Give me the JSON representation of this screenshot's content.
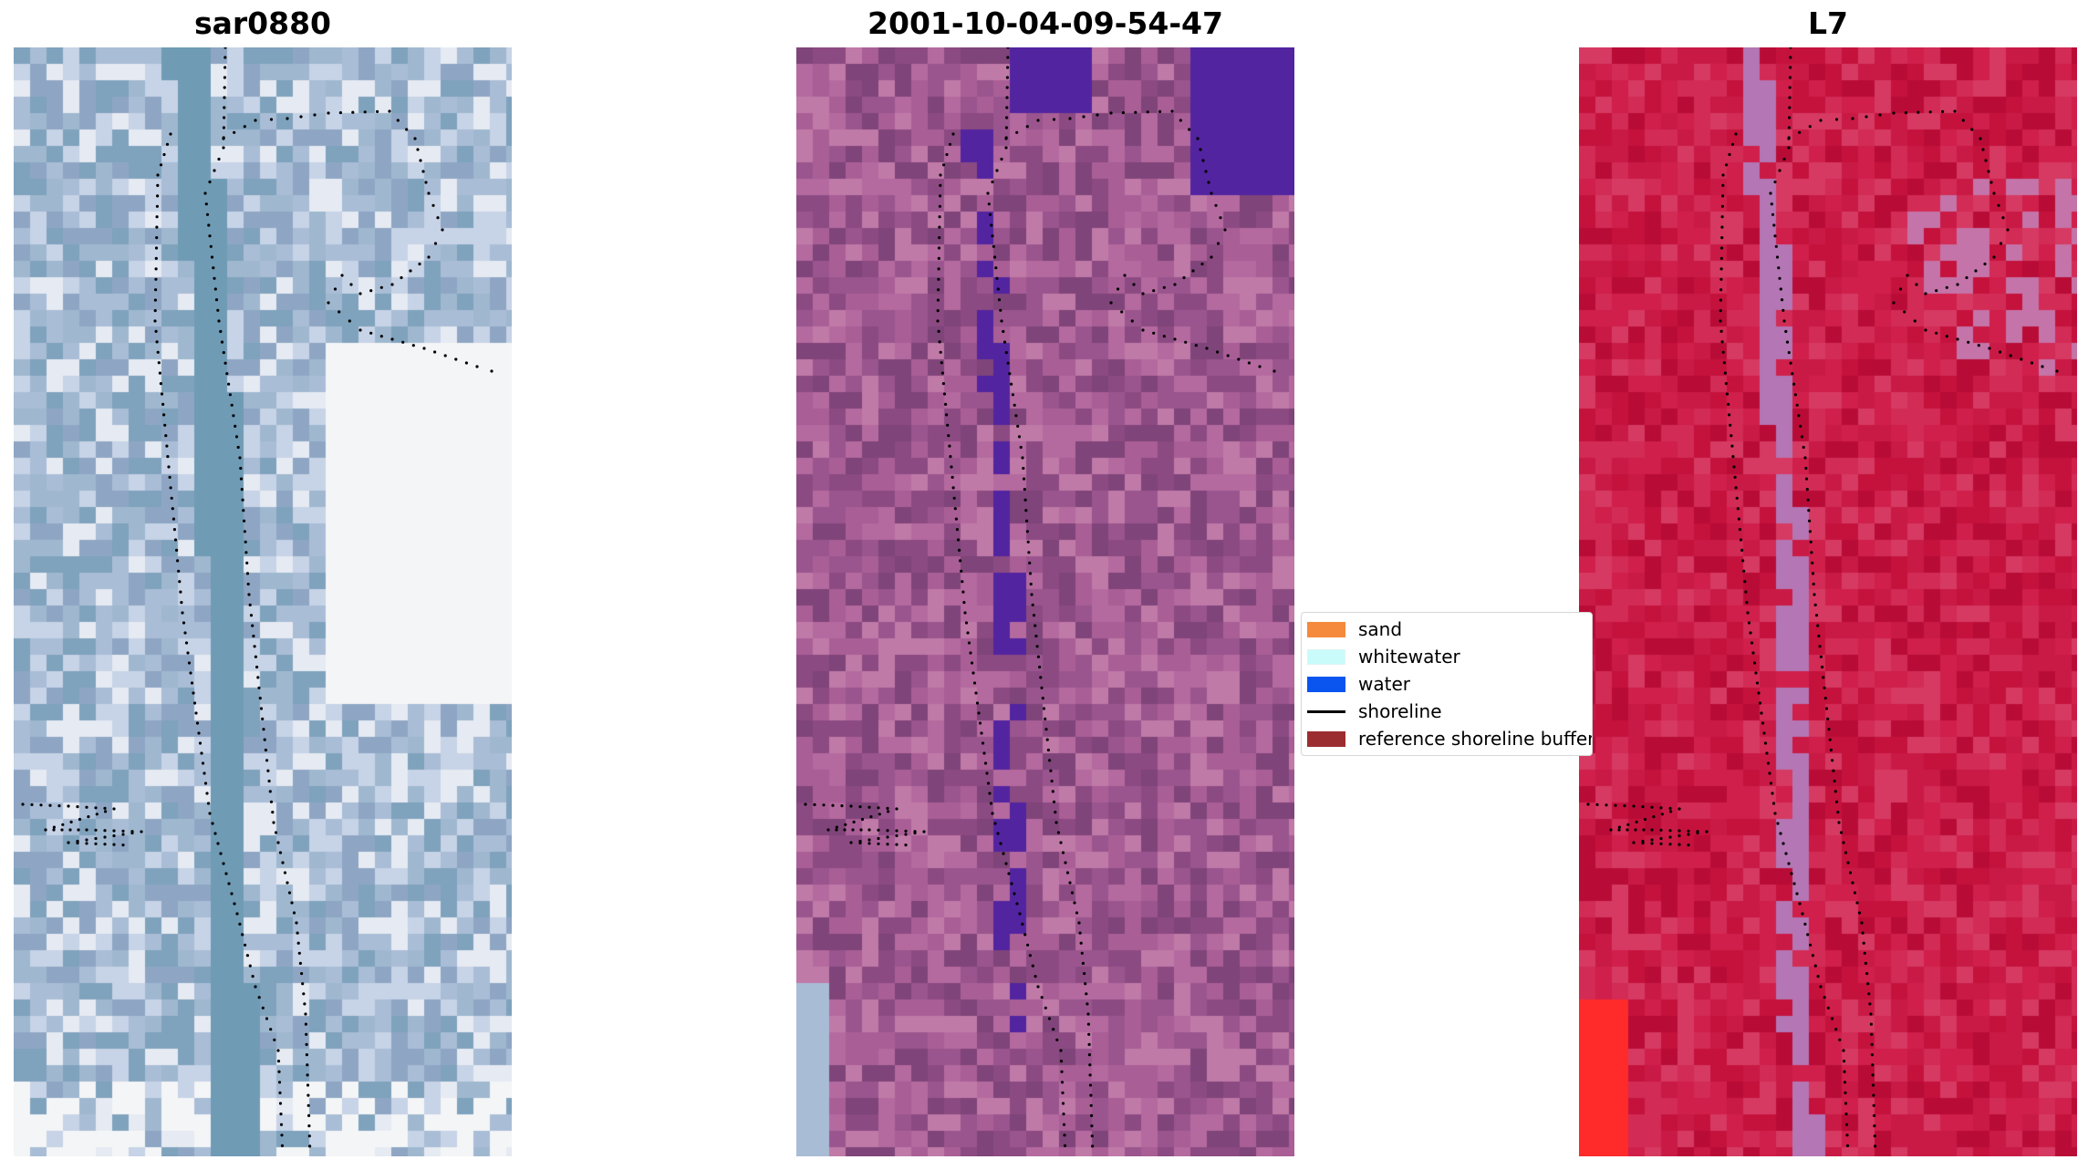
{
  "panels": [
    {
      "title": "sar0880",
      "palette": [
        "#8ea6c4",
        "#a9bdd6",
        "#c7d3e6",
        "#e6eaf2",
        "#7fa2bd",
        "#9fb8cf"
      ],
      "channel_color": "#6f9bb5",
      "bright_color": "#f4f5f7"
    },
    {
      "title": "2001-10-04-09-54-47",
      "palette": [
        "#8c4a82",
        "#9a558e",
        "#a95f96",
        "#b46a9f",
        "#7f4479",
        "#c07aa8"
      ],
      "channel_color": "#5224a0",
      "bright_color": "#a8bcd6"
    },
    {
      "title": "L7",
      "palette": [
        "#c4123d",
        "#cf1f4a",
        "#d22b55",
        "#b80c36",
        "#d63a62",
        "#c91a45"
      ],
      "channel_color": "#b476b4",
      "bright_color": "#ff2a2a"
    }
  ],
  "legend": {
    "items": [
      {
        "label": "sand",
        "color": "#f58a3c",
        "kind": "patch"
      },
      {
        "label": "whitewater",
        "color": "#c9fbfb",
        "kind": "patch"
      },
      {
        "label": "water",
        "color": "#0a55f0",
        "kind": "patch"
      },
      {
        "label": "shoreline",
        "color": "#000000",
        "kind": "line"
      },
      {
        "label": "reference shoreline buffer",
        "color": "#9b2d30",
        "kind": "patch"
      }
    ]
  },
  "shoreline_color": "#000000"
}
